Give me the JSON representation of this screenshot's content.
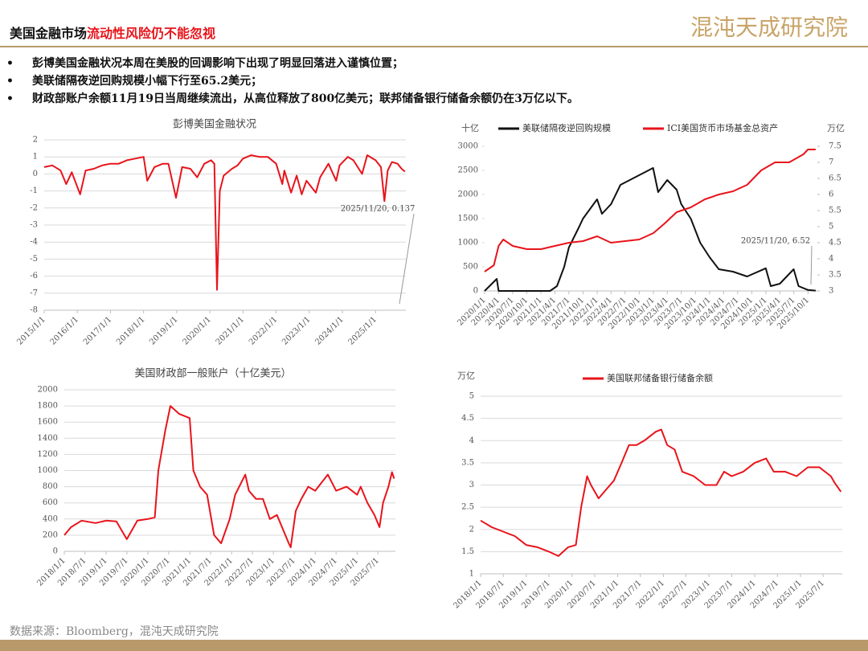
{
  "header": {
    "title_black": "美国金融市场",
    "title_red": "流动性风险仍不能忽视",
    "logo": "混沌天成研究院"
  },
  "bullets": [
    "彭博美国金融状况本周在美股的回调影响下出现了明显回落进入谨慎位置；",
    "美联储隔夜逆回购规模小幅下行至65.2美元；",
    "财政部账户余额11月19日当周继续流出，从高位释放了800亿美元；联邦储备银行储备余额仍在3万亿以下。"
  ],
  "source": "数据来源：Bloomberg，混沌天成研究院",
  "chart_data": [
    {
      "type": "line",
      "title": "彭博美国金融状况",
      "grid": true,
      "x": [
        "2015/1/1",
        "2015/4/1",
        "2015/7/1",
        "2015/9/1",
        "2015/11/1",
        "2016/2/1",
        "2016/4/1",
        "2016/7/1",
        "2016/10/1",
        "2017/1/1",
        "2017/4/1",
        "2017/7/1",
        "2017/10/1",
        "2018/1/1",
        "2018/2/10",
        "2018/5/1",
        "2018/8/1",
        "2018/10/1",
        "2018/12/24",
        "2019/3/1",
        "2019/6/1",
        "2019/8/15",
        "2019/11/1",
        "2020/1/15",
        "2020/2/20",
        "2020/3/20",
        "2020/4/20",
        "2020/6/1",
        "2020/9/1",
        "2020/11/1",
        "2021/1/1",
        "2021/4/1",
        "2021/7/1",
        "2021/10/1",
        "2022/1/1",
        "2022/3/10",
        "2022/4/1",
        "2022/6/15",
        "2022/8/15",
        "2022/10/10",
        "2022/12/1",
        "2023/3/15",
        "2023/5/1",
        "2023/8/1",
        "2023/10/25",
        "2023/12/1",
        "2024/3/1",
        "2024/5/1",
        "2024/8/5",
        "2024/10/1",
        "2025/1/1",
        "2025/3/1",
        "2025/4/8",
        "2025/5/15",
        "2025/7/1",
        "2025/9/1",
        "2025/10/15",
        "2025/11/20"
      ],
      "series": [
        {
          "color": "#e8141b",
          "values": [
            0.4,
            0.5,
            0.2,
            -0.6,
            0.1,
            -1.2,
            0.2,
            0.3,
            0.5,
            0.6,
            0.6,
            0.8,
            0.9,
            1.0,
            -0.4,
            0.4,
            0.6,
            0.6,
            -1.4,
            0.4,
            0.3,
            -0.2,
            0.6,
            0.8,
            0.6,
            -6.8,
            -1.0,
            -0.1,
            0.3,
            0.5,
            0.9,
            1.1,
            1.0,
            1.0,
            0.6,
            -0.6,
            0.2,
            -1.1,
            -0.1,
            -1.2,
            -0.4,
            -1.1,
            -0.2,
            0.6,
            -0.4,
            0.5,
            1.0,
            0.8,
            0.0,
            1.1,
            0.8,
            0.4,
            -1.6,
            0.2,
            0.7,
            0.6,
            0.3,
            0.137
          ]
        }
      ],
      "xlim": [
        "2015/1/1",
        "2025/12/1"
      ],
      "xticks": [
        "2015/1/1",
        "2016/1/1",
        "2017/1/1",
        "2018/1/1",
        "2019/1/1",
        "2020/1/1",
        "2021/1/1",
        "2022/1/1",
        "2023/1/1",
        "2024/1/1",
        "2025/1/1"
      ],
      "ylim": [
        -8,
        2
      ],
      "yticks": [
        2,
        1,
        0,
        -1,
        -2,
        -3,
        -4,
        -5,
        -6,
        -7,
        -8
      ],
      "annotations": [
        {
          "text": "2025/11/20, 0.137"
        }
      ]
    },
    {
      "type": "line",
      "grid": false,
      "y_unit": "十亿",
      "y2_unit": "万亿",
      "series": [
        {
          "name": "美联储隔夜逆回购规模",
          "color": "#111111",
          "x": [
            "2020/1/1",
            "2020/3/20",
            "2020/4/1",
            "2021/3/1",
            "2021/4/15",
            "2021/6/1",
            "2021/7/1",
            "2021/9/1",
            "2021/10/1",
            "2021/12/31",
            "2022/2/1",
            "2022/4/1",
            "2022/6/1",
            "2022/9/30",
            "2022/12/30",
            "2023/2/1",
            "2023/4/1",
            "2023/6/1",
            "2023/7/1",
            "2023/9/1",
            "2023/11/1",
            "2024/1/1",
            "2024/3/1",
            "2024/6/1",
            "2024/9/1",
            "2024/12/31",
            "2025/2/1",
            "2025/4/1",
            "2025/6/30",
            "2025/8/1",
            "2025/10/1",
            "2025/11/20"
          ],
          "values": [
            0,
            250,
            0,
            0,
            100,
            500,
            900,
            1300,
            1500,
            1900,
            1600,
            1800,
            2200,
            2400,
            2550,
            2050,
            2300,
            2100,
            1800,
            1500,
            1000,
            700,
            450,
            400,
            300,
            470,
            100,
            150,
            450,
            100,
            20,
            6.52
          ]
        },
        {
          "name": "ICI美国货币市场基金总资产",
          "color": "#e8141b",
          "axis": "y2",
          "x": [
            "2020/1/1",
            "2020/3/1",
            "2020/4/1",
            "2020/5/1",
            "2020/7/1",
            "2020/10/1",
            "2021/1/1",
            "2021/4/1",
            "2021/7/1",
            "2021/10/1",
            "2022/1/1",
            "2022/4/1",
            "2022/7/1",
            "2022/10/1",
            "2023/1/1",
            "2023/3/15",
            "2023/6/1",
            "2023/9/1",
            "2023/12/1",
            "2024/3/1",
            "2024/6/1",
            "2024/9/1",
            "2024/12/1",
            "2025/3/1",
            "2025/6/1",
            "2025/9/1",
            "2025/10/1",
            "2025/11/20"
          ],
          "values": [
            3.6,
            3.8,
            4.4,
            4.6,
            4.4,
            4.3,
            4.3,
            4.4,
            4.5,
            4.55,
            4.7,
            4.5,
            4.55,
            4.6,
            4.8,
            5.1,
            5.45,
            5.6,
            5.85,
            6.0,
            6.1,
            6.3,
            6.75,
            7.0,
            7.0,
            7.25,
            7.4,
            7.4
          ]
        }
      ],
      "xlim": [
        "2020/1/1",
        "2025/12/1"
      ],
      "xticks": [
        "2020/1/1",
        "2020/4/1",
        "2020/7/1",
        "2020/10/1",
        "2021/1/1",
        "2021/4/1",
        "2021/7/1",
        "2021/10/1",
        "2022/1/1",
        "2022/4/1",
        "2022/7/1",
        "2022/10/1",
        "2023/1/1",
        "2023/4/1",
        "2023/7/1",
        "2023/10/1",
        "2024/1/1",
        "2024/4/1",
        "2024/7/1",
        "2024/10/1",
        "2025/1/1",
        "2025/4/1",
        "2025/7/1",
        "2025/10/1"
      ],
      "ylim": [
        0,
        3000
      ],
      "yticks": [
        0,
        500,
        1000,
        1500,
        2000,
        2500,
        3000
      ],
      "y2lim": [
        3,
        7.5
      ],
      "y2ticks": [
        3,
        3.5,
        4,
        4.5,
        5,
        5.5,
        6,
        6.5,
        7,
        7.5
      ],
      "annotations": [
        {
          "text": "2025/11/20, 6.52"
        }
      ]
    },
    {
      "type": "line",
      "title": "美国财政部一般账户（十亿美元）",
      "grid": true,
      "x": [
        "2018/1/1",
        "2018/3/1",
        "2018/6/1",
        "2018/10/1",
        "2019/1/1",
        "2019/4/1",
        "2019/7/1",
        "2019/10/1",
        "2020/1/1",
        "2020/3/1",
        "2020/4/1",
        "2020/6/1",
        "2020/7/15",
        "2020/10/1",
        "2020/12/31",
        "2021/2/1",
        "2021/4/1",
        "2021/6/1",
        "2021/8/1",
        "2021/10/1",
        "2021/12/15",
        "2022/2/1",
        "2022/4/30",
        "2022/6/1",
        "2022/8/1",
        "2022/10/1",
        "2022/12/1",
        "2023/2/1",
        "2023/5/15",
        "2023/6/1",
        "2023/7/15",
        "2023/9/1",
        "2023/11/1",
        "2024/1/1",
        "2024/4/20",
        "2024/7/1",
        "2024/10/1",
        "2024/12/31",
        "2025/2/1",
        "2025/4/1",
        "2025/6/1",
        "2025/7/15",
        "2025/8/15",
        "2025/10/1",
        "2025/11/1",
        "2025/11/20"
      ],
      "series": [
        {
          "color": "#e8141b",
          "values": [
            200,
            300,
            380,
            350,
            380,
            370,
            150,
            380,
            400,
            420,
            1000,
            1500,
            1800,
            1700,
            1650,
            1000,
            800,
            700,
            200,
            100,
            400,
            700,
            950,
            750,
            650,
            650,
            400,
            450,
            100,
            50,
            500,
            650,
            800,
            750,
            950,
            750,
            800,
            700,
            800,
            600,
            450,
            300,
            600,
            800,
            980,
            900
          ]
        }
      ],
      "xlim": [
        "2018/1/1",
        "2025/12/1"
      ],
      "xticks": [
        "2018/1/1",
        "2018/7/1",
        "2019/1/1",
        "2019/7/1",
        "2020/1/1",
        "2020/7/1",
        "2021/1/1",
        "2021/7/1",
        "2022/1/1",
        "2022/7/1",
        "2023/1/1",
        "2023/7/1",
        "2024/1/1",
        "2024/7/1",
        "2025/1/1",
        "2025/7/1"
      ],
      "ylim": [
        0,
        2000
      ],
      "yticks": [
        0,
        200,
        400,
        600,
        800,
        1000,
        1200,
        1400,
        1600,
        1800,
        2000
      ]
    },
    {
      "type": "line",
      "grid": true,
      "y_unit": "万亿",
      "x": [
        "2018/1/1",
        "2018/4/1",
        "2018/7/1",
        "2018/10/1",
        "2019/1/1",
        "2019/4/1",
        "2019/7/1",
        "2019/9/15",
        "2019/12/1",
        "2020/2/1",
        "2020/3/15",
        "2020/5/1",
        "2020/6/1",
        "2020/8/1",
        "2020/10/1",
        "2020/12/1",
        "2021/2/1",
        "2021/4/1",
        "2021/6/1",
        "2021/8/1",
        "2021/11/1",
        "2021/12/15",
        "2022/2/1",
        "2022/4/1",
        "2022/6/1",
        "2022/9/1",
        "2022/12/1",
        "2023/3/1",
        "2023/5/1",
        "2023/7/1",
        "2023/10/1",
        "2024/1/1",
        "2024/4/1",
        "2024/6/1",
        "2024/9/1",
        "2024/12/1",
        "2025/3/1",
        "2025/6/1",
        "2025/9/1",
        "2025/10/1",
        "2025/11/20"
      ],
      "series": [
        {
          "name": "美国联邦储备银行储备余额",
          "color": "#e8141b",
          "values": [
            2.2,
            2.05,
            1.95,
            1.85,
            1.65,
            1.6,
            1.5,
            1.4,
            1.6,
            1.65,
            2.5,
            3.2,
            3.0,
            2.7,
            2.9,
            3.1,
            3.5,
            3.9,
            3.9,
            4.0,
            4.2,
            4.25,
            3.9,
            3.8,
            3.3,
            3.2,
            3.0,
            3.0,
            3.3,
            3.2,
            3.3,
            3.5,
            3.6,
            3.3,
            3.3,
            3.2,
            3.4,
            3.4,
            3.2,
            3.05,
            2.85
          ]
        }
      ],
      "xlim": [
        "2018/1/1",
        "2025/12/1"
      ],
      "xticks": [
        "2018/1/1",
        "2018/7/1",
        "2019/1/1",
        "2019/7/1",
        "2020/1/1",
        "2020/7/1",
        "2021/1/1",
        "2021/7/1",
        "2022/1/1",
        "2022/7/1",
        "2023/1/1",
        "2023/7/1",
        "2024/1/1",
        "2024/7/1",
        "2025/1/1",
        "2025/7/1"
      ],
      "ylim": [
        1,
        5
      ],
      "yticks": [
        1,
        1.5,
        2,
        2.5,
        3,
        3.5,
        4,
        4.5,
        5
      ]
    }
  ]
}
